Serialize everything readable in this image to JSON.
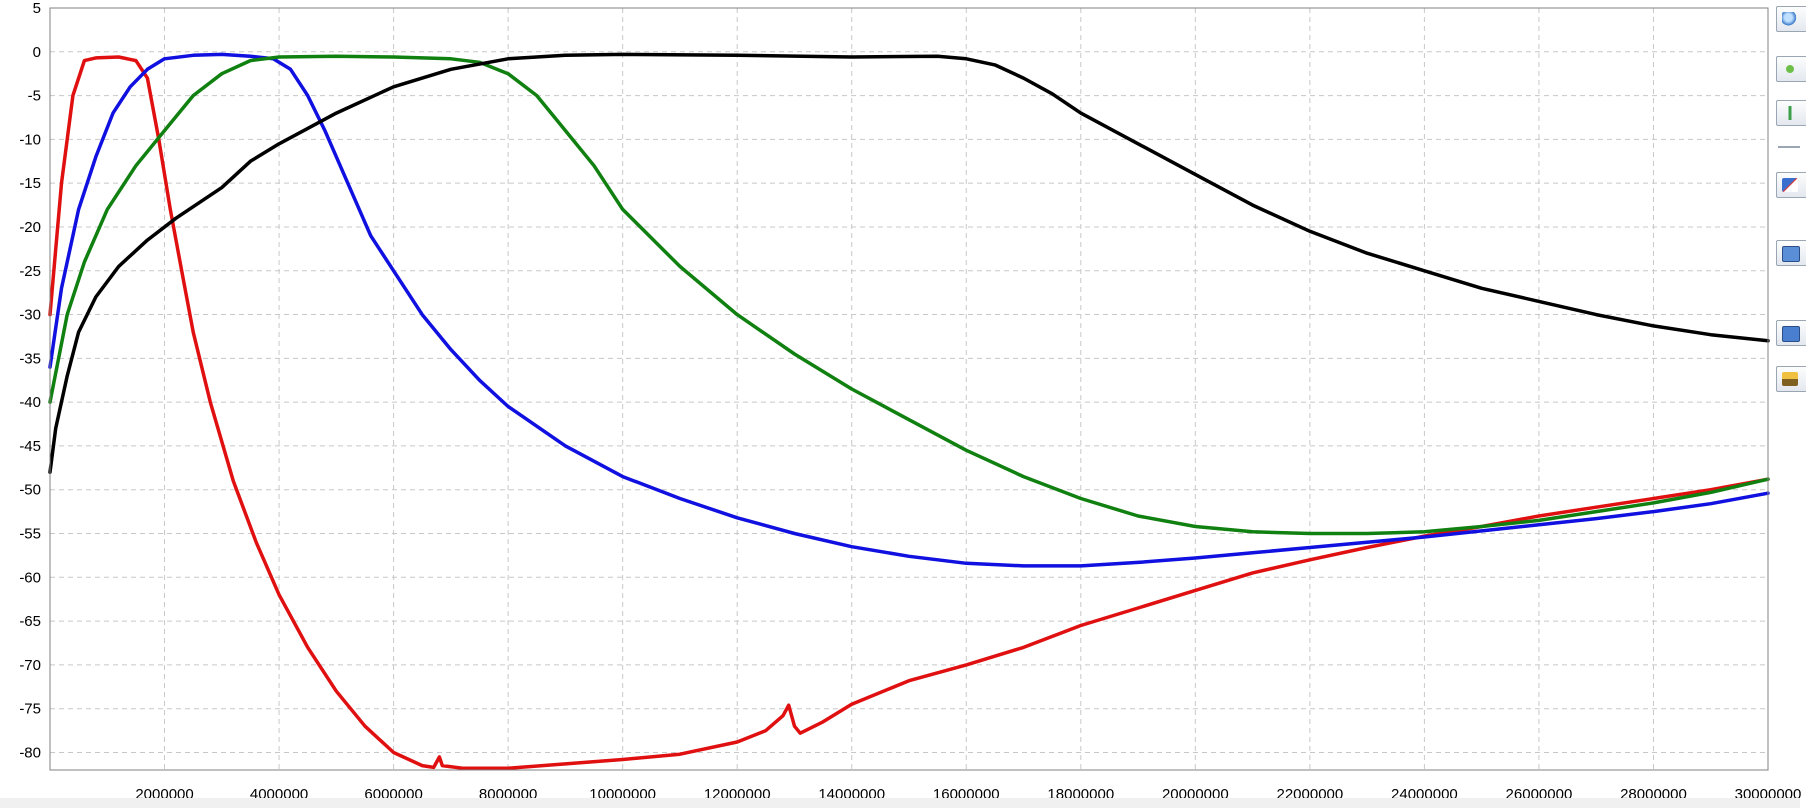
{
  "chart_data": {
    "type": "line",
    "title": "",
    "xlabel": "",
    "ylabel": "",
    "xlim": [
      0,
      30000000
    ],
    "ylim": [
      -82,
      5
    ],
    "grid": true,
    "x_ticks": [
      "2000000",
      "4000000",
      "6000000",
      "8000000",
      "10000000",
      "12000000",
      "14000000",
      "16000000",
      "18000000",
      "20000000",
      "22000000",
      "24000000",
      "26000000",
      "28000000",
      "30000000"
    ],
    "y_ticks": [
      "5",
      "0",
      "-5",
      "-10",
      "-15",
      "-20",
      "-25",
      "-30",
      "-35",
      "-40",
      "-45",
      "-50",
      "-55",
      "-60",
      "-65",
      "-70",
      "-75",
      "-80"
    ],
    "series": [
      {
        "color": "#e01010",
        "points": [
          [
            0,
            -30
          ],
          [
            200000,
            -15
          ],
          [
            400000,
            -5
          ],
          [
            600000,
            -1
          ],
          [
            800000,
            -0.7
          ],
          [
            1200000,
            -0.6
          ],
          [
            1500000,
            -1
          ],
          [
            1700000,
            -3
          ],
          [
            1900000,
            -10
          ],
          [
            2100000,
            -18
          ],
          [
            2300000,
            -25
          ],
          [
            2500000,
            -32
          ],
          [
            2800000,
            -40
          ],
          [
            3200000,
            -49
          ],
          [
            3600000,
            -56
          ],
          [
            4000000,
            -62
          ],
          [
            4500000,
            -68
          ],
          [
            5000000,
            -73
          ],
          [
            5500000,
            -77
          ],
          [
            6000000,
            -80
          ],
          [
            6500000,
            -81.5
          ],
          [
            6700000,
            -81.7
          ],
          [
            6800000,
            -80.5
          ],
          [
            6850000,
            -81.5
          ],
          [
            7200000,
            -81.8
          ],
          [
            8000000,
            -81.8
          ],
          [
            9000000,
            -81.3
          ],
          [
            10000000,
            -80.8
          ],
          [
            11000000,
            -80.2
          ],
          [
            12000000,
            -78.8
          ],
          [
            12500000,
            -77.5
          ],
          [
            12800000,
            -75.8
          ],
          [
            12900000,
            -74.6
          ],
          [
            13000000,
            -77
          ],
          [
            13100000,
            -77.8
          ],
          [
            13500000,
            -76.5
          ],
          [
            14000000,
            -74.5
          ],
          [
            15000000,
            -71.8
          ],
          [
            16000000,
            -70
          ],
          [
            17000000,
            -68
          ],
          [
            18000000,
            -65.5
          ],
          [
            19000000,
            -63.5
          ],
          [
            20000000,
            -61.5
          ],
          [
            21000000,
            -59.5
          ],
          [
            22000000,
            -58
          ],
          [
            23000000,
            -56.6
          ],
          [
            24000000,
            -55.3
          ],
          [
            25000000,
            -54.2
          ],
          [
            26000000,
            -53
          ],
          [
            27000000,
            -52
          ],
          [
            28000000,
            -51
          ],
          [
            29000000,
            -50
          ],
          [
            30000000,
            -48.8
          ]
        ]
      },
      {
        "color": "#1010e0",
        "points": [
          [
            0,
            -36
          ],
          [
            200000,
            -27
          ],
          [
            500000,
            -18
          ],
          [
            800000,
            -12
          ],
          [
            1100000,
            -7
          ],
          [
            1400000,
            -4
          ],
          [
            1700000,
            -2
          ],
          [
            2000000,
            -0.8
          ],
          [
            2500000,
            -0.4
          ],
          [
            3000000,
            -0.3
          ],
          [
            3500000,
            -0.5
          ],
          [
            3900000,
            -0.8
          ],
          [
            4200000,
            -2
          ],
          [
            4500000,
            -5
          ],
          [
            4800000,
            -9
          ],
          [
            5200000,
            -15
          ],
          [
            5600000,
            -21
          ],
          [
            6000000,
            -25
          ],
          [
            6500000,
            -30
          ],
          [
            7000000,
            -34
          ],
          [
            7500000,
            -37.5
          ],
          [
            8000000,
            -40.5
          ],
          [
            9000000,
            -45
          ],
          [
            10000000,
            -48.5
          ],
          [
            11000000,
            -51
          ],
          [
            12000000,
            -53.2
          ],
          [
            13000000,
            -55
          ],
          [
            14000000,
            -56.5
          ],
          [
            15000000,
            -57.6
          ],
          [
            16000000,
            -58.4
          ],
          [
            17000000,
            -58.7
          ],
          [
            18000000,
            -58.7
          ],
          [
            19000000,
            -58.3
          ],
          [
            20000000,
            -57.8
          ],
          [
            21000000,
            -57.2
          ],
          [
            22000000,
            -56.6
          ],
          [
            23000000,
            -56
          ],
          [
            24000000,
            -55.4
          ],
          [
            25000000,
            -54.7
          ],
          [
            26000000,
            -54
          ],
          [
            27000000,
            -53.3
          ],
          [
            28000000,
            -52.5
          ],
          [
            29000000,
            -51.6
          ],
          [
            30000000,
            -50.4
          ]
        ]
      },
      {
        "color": "#108010",
        "points": [
          [
            0,
            -40
          ],
          [
            300000,
            -30
          ],
          [
            600000,
            -24
          ],
          [
            1000000,
            -18
          ],
          [
            1500000,
            -13
          ],
          [
            2000000,
            -9
          ],
          [
            2500000,
            -5
          ],
          [
            3000000,
            -2.5
          ],
          [
            3500000,
            -1
          ],
          [
            4000000,
            -0.6
          ],
          [
            5000000,
            -0.5
          ],
          [
            6000000,
            -0.6
          ],
          [
            7000000,
            -0.8
          ],
          [
            7500000,
            -1.2
          ],
          [
            8000000,
            -2.5
          ],
          [
            8500000,
            -5
          ],
          [
            9000000,
            -9
          ],
          [
            9500000,
            -13
          ],
          [
            10000000,
            -18
          ],
          [
            11000000,
            -24.5
          ],
          [
            12000000,
            -30
          ],
          [
            13000000,
            -34.5
          ],
          [
            14000000,
            -38.5
          ],
          [
            15000000,
            -42
          ],
          [
            16000000,
            -45.5
          ],
          [
            17000000,
            -48.5
          ],
          [
            18000000,
            -51
          ],
          [
            19000000,
            -53
          ],
          [
            20000000,
            -54.2
          ],
          [
            21000000,
            -54.8
          ],
          [
            22000000,
            -55
          ],
          [
            23000000,
            -55
          ],
          [
            24000000,
            -54.8
          ],
          [
            25000000,
            -54.2
          ],
          [
            26000000,
            -53.5
          ],
          [
            27000000,
            -52.5
          ],
          [
            28000000,
            -51.5
          ],
          [
            29000000,
            -50.3
          ],
          [
            30000000,
            -48.8
          ]
        ]
      },
      {
        "color": "#000000",
        "points": [
          [
            0,
            -48
          ],
          [
            100000,
            -43
          ],
          [
            300000,
            -37
          ],
          [
            500000,
            -32
          ],
          [
            800000,
            -28
          ],
          [
            1200000,
            -24.5
          ],
          [
            1700000,
            -21.5
          ],
          [
            2200000,
            -19
          ],
          [
            3000000,
            -15.5
          ],
          [
            3500000,
            -12.5
          ],
          [
            4000000,
            -10.5
          ],
          [
            5000000,
            -7
          ],
          [
            6000000,
            -4
          ],
          [
            7000000,
            -2
          ],
          [
            8000000,
            -0.8
          ],
          [
            9000000,
            -0.4
          ],
          [
            10000000,
            -0.3
          ],
          [
            12000000,
            -0.4
          ],
          [
            14000000,
            -0.6
          ],
          [
            15500000,
            -0.5
          ],
          [
            16000000,
            -0.8
          ],
          [
            16500000,
            -1.5
          ],
          [
            17000000,
            -3
          ],
          [
            17500000,
            -4.8
          ],
          [
            18000000,
            -7
          ],
          [
            19000000,
            -10.5
          ],
          [
            20000000,
            -14
          ],
          [
            21000000,
            -17.5
          ],
          [
            22000000,
            -20.5
          ],
          [
            23000000,
            -23
          ],
          [
            24000000,
            -25
          ],
          [
            25000000,
            -27
          ],
          [
            26000000,
            -28.5
          ],
          [
            27000000,
            -30
          ],
          [
            28000000,
            -31.3
          ],
          [
            29000000,
            -32.3
          ],
          [
            30000000,
            -33
          ]
        ]
      }
    ]
  },
  "toolbar": {
    "icons": [
      "zoom-icon",
      "pan-icon",
      "autoscale-icon",
      "chart-properties-icon",
      "copy-image-icon",
      "export-data-icon",
      "print-icon"
    ]
  }
}
